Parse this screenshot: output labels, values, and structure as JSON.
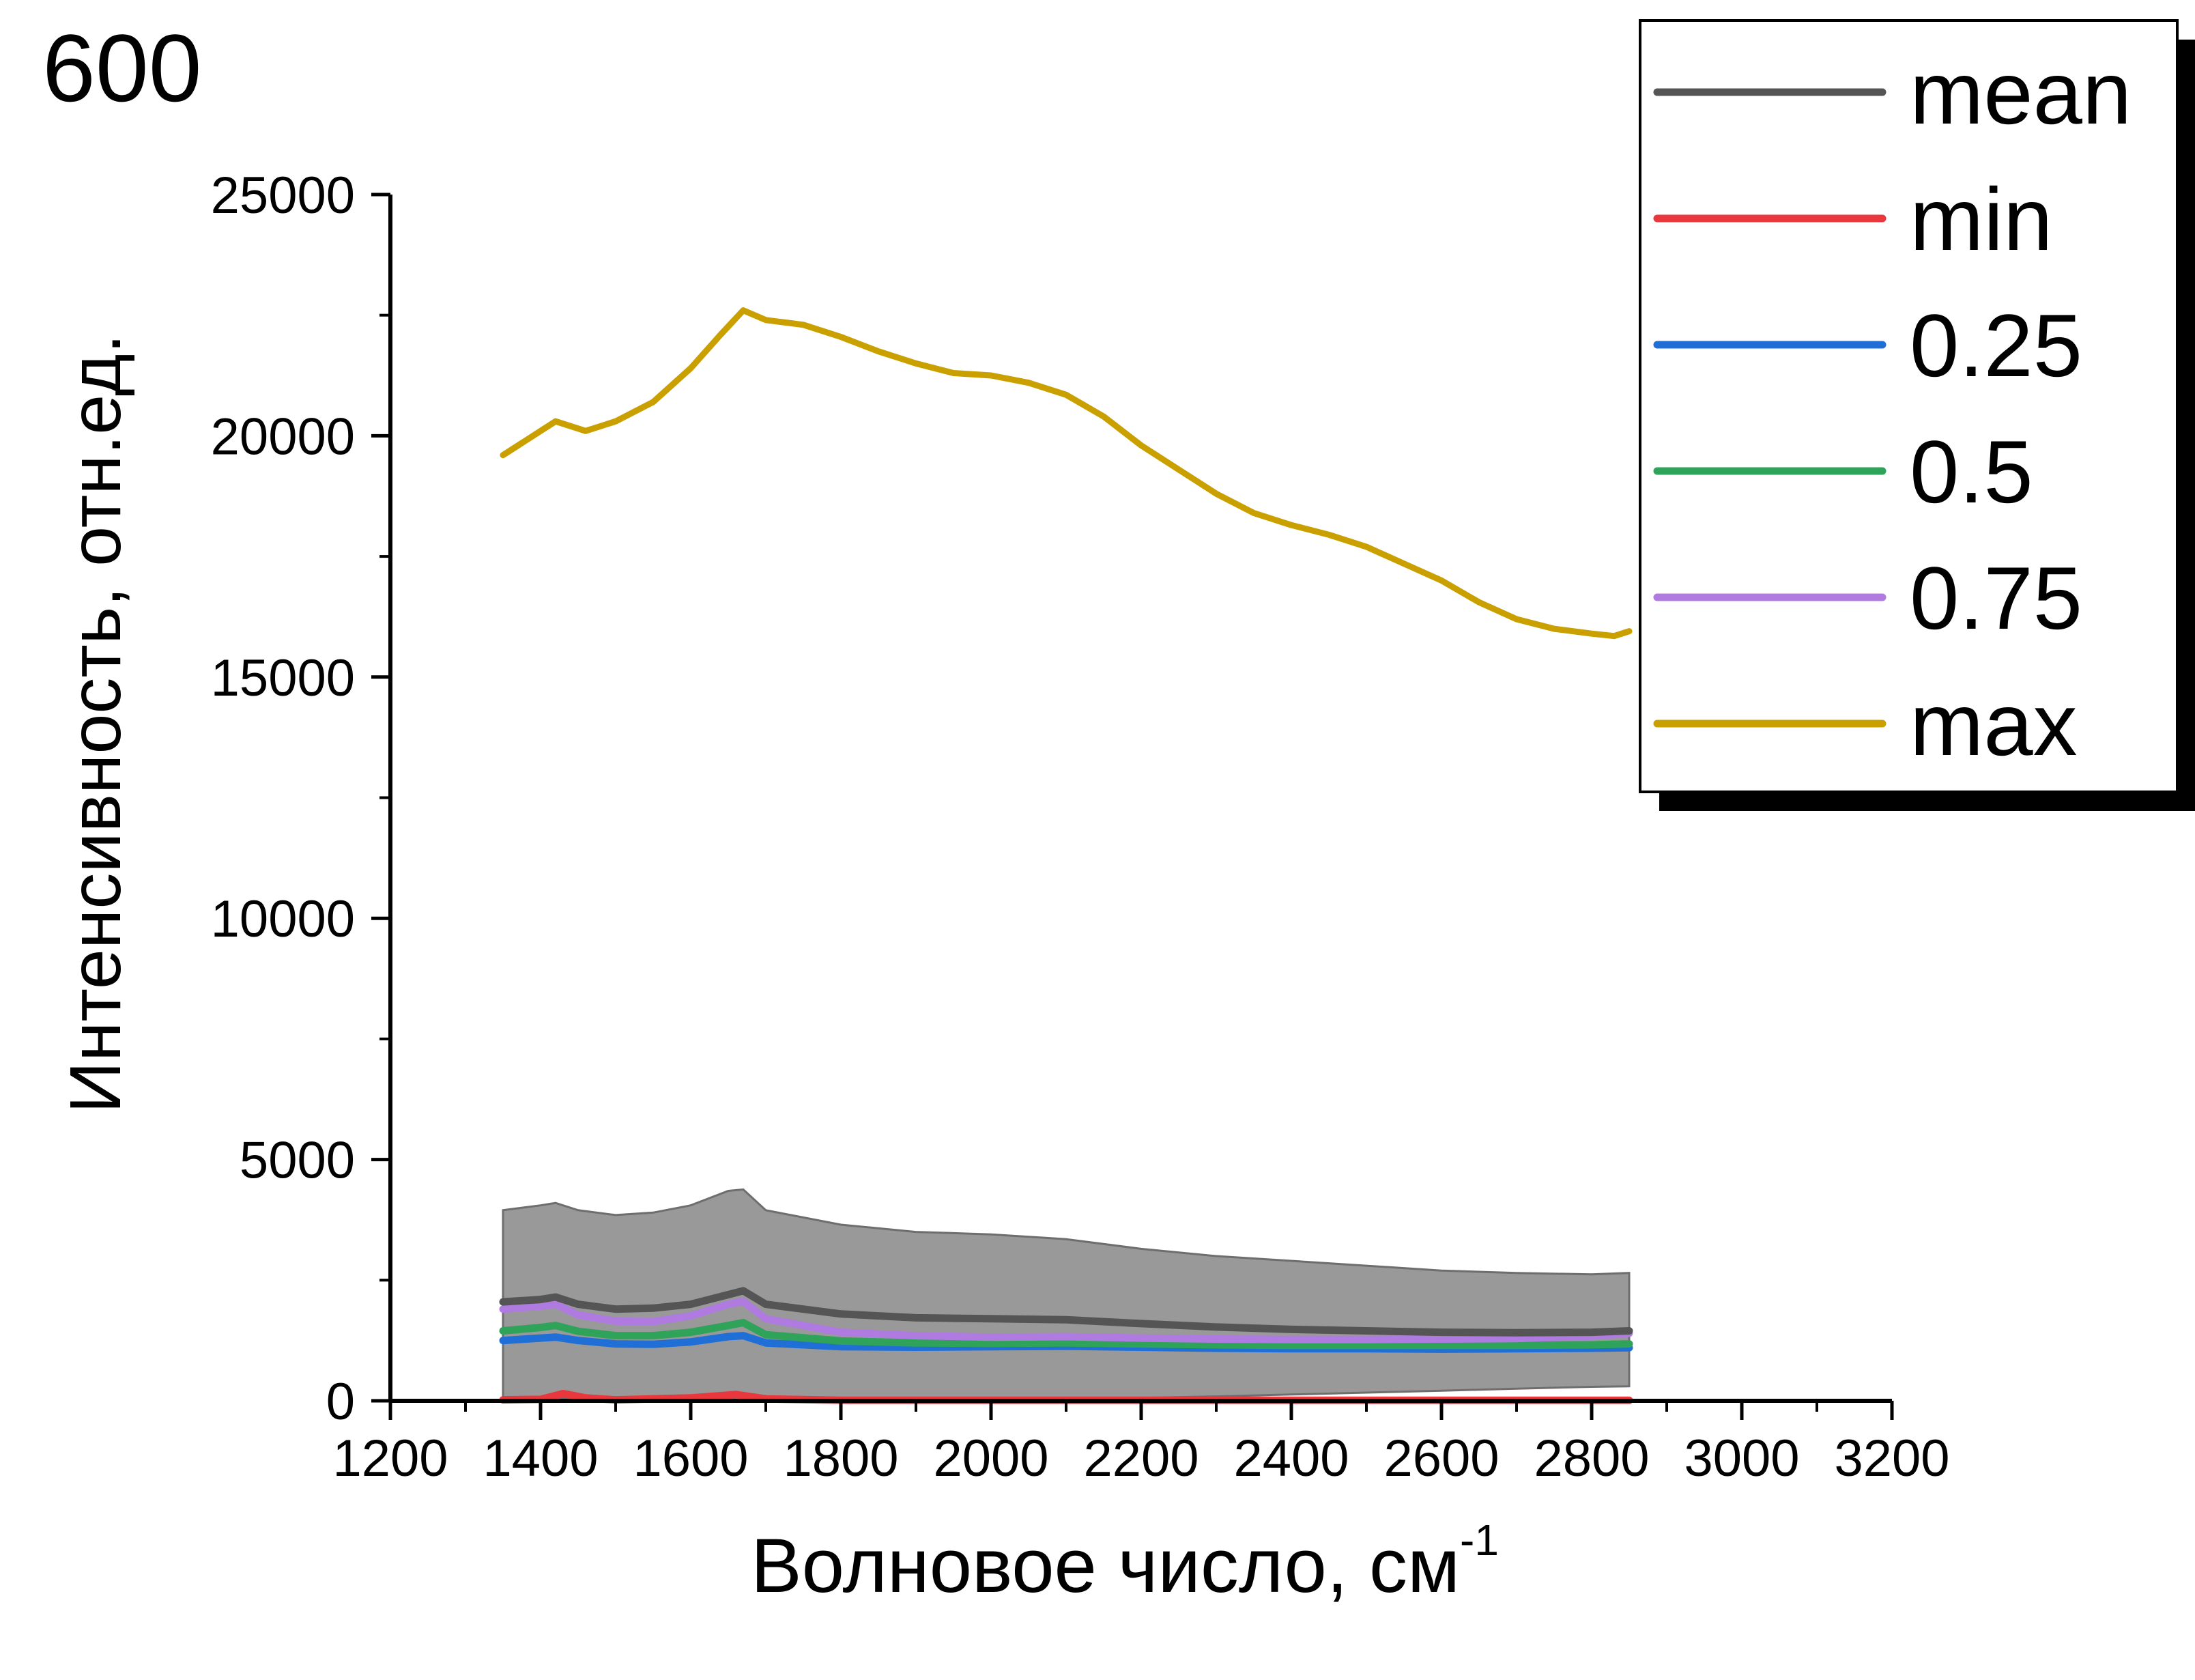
{
  "panel_label": "600",
  "chart_data": {
    "type": "line",
    "xlabel_main": "Волновое число, см",
    "xlabel_sup": "-1",
    "ylabel": "Интенсивность, отн.ед.",
    "xlim": [
      1200,
      3200
    ],
    "ylim": [
      0,
      25000
    ],
    "x_ticks": [
      1200,
      1400,
      1600,
      1800,
      2000,
      2200,
      2400,
      2600,
      2800,
      3000,
      3200
    ],
    "y_ticks": [
      0,
      5000,
      10000,
      15000,
      20000,
      25000
    ],
    "legend_position": "top-right",
    "band": {
      "color": "#999999",
      "x": [
        1350,
        1400,
        1420,
        1450,
        1500,
        1550,
        1600,
        1650,
        1670,
        1700,
        1800,
        1900,
        2000,
        2100,
        2200,
        2300,
        2400,
        2500,
        2600,
        2700,
        2800,
        2850
      ],
      "upper": [
        3950,
        4050,
        4100,
        3950,
        3850,
        3900,
        4050,
        4350,
        4380,
        3950,
        3650,
        3500,
        3450,
        3350,
        3150,
        3000,
        2900,
        2800,
        2700,
        2650,
        2620,
        2650
      ],
      "lower": [
        30,
        40,
        60,
        40,
        30,
        30,
        40,
        60,
        70,
        50,
        40,
        40,
        40,
        45,
        60,
        90,
        130,
        170,
        210,
        250,
        290,
        300
      ]
    },
    "series": [
      {
        "name": "mean",
        "color": "#555555",
        "x": [
          1350,
          1400,
          1420,
          1450,
          1500,
          1550,
          1600,
          1650,
          1670,
          1700,
          1800,
          1900,
          2000,
          2100,
          2200,
          2300,
          2400,
          2500,
          2600,
          2700,
          2800,
          2850
        ],
        "y": [
          2050,
          2100,
          2150,
          2000,
          1900,
          1920,
          2000,
          2200,
          2280,
          2000,
          1800,
          1720,
          1700,
          1680,
          1600,
          1530,
          1480,
          1450,
          1420,
          1410,
          1420,
          1450
        ]
      },
      {
        "name": "min",
        "color": "#e8373d",
        "x": [
          1350,
          1400,
          1430,
          1460,
          1500,
          1600,
          1660,
          1700,
          1800,
          2000,
          2200,
          2400,
          2600,
          2800,
          2850
        ],
        "y": [
          20,
          30,
          150,
          60,
          20,
          60,
          130,
          40,
          10,
          10,
          10,
          10,
          10,
          10,
          10
        ]
      },
      {
        "name": "0.25",
        "color": "#1f6fd6",
        "x": [
          1350,
          1400,
          1420,
          1450,
          1500,
          1550,
          1600,
          1650,
          1670,
          1700,
          1800,
          1900,
          2000,
          2100,
          2200,
          2300,
          2400,
          2500,
          2600,
          2700,
          2800,
          2850
        ],
        "y": [
          1250,
          1300,
          1320,
          1250,
          1180,
          1170,
          1220,
          1330,
          1350,
          1200,
          1120,
          1110,
          1120,
          1130,
          1110,
          1090,
          1080,
          1080,
          1070,
          1080,
          1090,
          1100
        ]
      },
      {
        "name": "0.5",
        "color": "#2fa35a",
        "x": [
          1350,
          1400,
          1420,
          1450,
          1500,
          1550,
          1600,
          1650,
          1670,
          1700,
          1800,
          1900,
          2000,
          2100,
          2200,
          2300,
          2400,
          2500,
          2600,
          2700,
          2800,
          2850
        ],
        "y": [
          1450,
          1520,
          1560,
          1440,
          1350,
          1350,
          1420,
          1560,
          1620,
          1370,
          1240,
          1200,
          1190,
          1200,
          1180,
          1160,
          1150,
          1150,
          1150,
          1150,
          1160,
          1180
        ]
      },
      {
        "name": "0.75",
        "color": "#b07be0",
        "x": [
          1350,
          1400,
          1420,
          1450,
          1500,
          1550,
          1600,
          1650,
          1670,
          1700,
          1800,
          1900,
          2000,
          2100,
          2200,
          2300,
          2400,
          2500,
          2600,
          2700,
          2800,
          2850
        ],
        "y": [
          1900,
          1960,
          2000,
          1780,
          1650,
          1640,
          1760,
          2000,
          2060,
          1700,
          1420,
          1350,
          1320,
          1330,
          1300,
          1280,
          1270,
          1270,
          1280,
          1290,
          1340,
          1400
        ]
      },
      {
        "name": "max",
        "color": "#c9a000",
        "x": [
          1350,
          1380,
          1420,
          1460,
          1500,
          1550,
          1600,
          1640,
          1670,
          1700,
          1750,
          1800,
          1850,
          1900,
          1950,
          2000,
          2050,
          2100,
          2150,
          2200,
          2250,
          2300,
          2350,
          2400,
          2450,
          2500,
          2550,
          2600,
          2650,
          2700,
          2750,
          2800,
          2830,
          2850
        ],
        "y": [
          19600,
          19900,
          20300,
          20100,
          20300,
          20700,
          21400,
          22100,
          22600,
          22400,
          22300,
          22050,
          21750,
          21500,
          21300,
          21250,
          21100,
          20850,
          20400,
          19800,
          19300,
          18800,
          18400,
          18150,
          17950,
          17700,
          17350,
          17000,
          16550,
          16200,
          16000,
          15900,
          15850,
          15950
        ]
      }
    ]
  }
}
